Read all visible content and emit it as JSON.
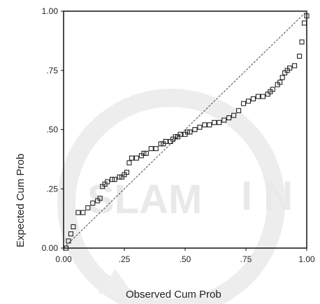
{
  "chart_data": {
    "type": "scatter",
    "title": "",
    "xlabel": "Observed Cum Prob",
    "ylabel": "Expected Cum Prob",
    "xlim": [
      0,
      1
    ],
    "ylim": [
      0,
      1
    ],
    "x_ticks": [
      "0.00",
      ".25",
      ".50",
      ".75",
      "1.00"
    ],
    "y_ticks": [
      "0.00",
      ".25",
      ".50",
      ".75",
      "1.00"
    ],
    "reference_line": {
      "style": "dashed",
      "from": [
        0,
        0
      ],
      "to": [
        1,
        1
      ]
    },
    "marker": "open-square",
    "grid": false,
    "points": [
      [
        0.01,
        0.0
      ],
      [
        0.02,
        0.03
      ],
      [
        0.03,
        0.06
      ],
      [
        0.04,
        0.09
      ],
      [
        0.06,
        0.15
      ],
      [
        0.08,
        0.15
      ],
      [
        0.1,
        0.17
      ],
      [
        0.12,
        0.19
      ],
      [
        0.14,
        0.2
      ],
      [
        0.15,
        0.21
      ],
      [
        0.16,
        0.26
      ],
      [
        0.17,
        0.27
      ],
      [
        0.18,
        0.28
      ],
      [
        0.2,
        0.29
      ],
      [
        0.21,
        0.29
      ],
      [
        0.23,
        0.3
      ],
      [
        0.24,
        0.3
      ],
      [
        0.25,
        0.31
      ],
      [
        0.26,
        0.32
      ],
      [
        0.27,
        0.36
      ],
      [
        0.28,
        0.38
      ],
      [
        0.3,
        0.38
      ],
      [
        0.32,
        0.39
      ],
      [
        0.33,
        0.4
      ],
      [
        0.34,
        0.4
      ],
      [
        0.36,
        0.42
      ],
      [
        0.38,
        0.42
      ],
      [
        0.4,
        0.44
      ],
      [
        0.41,
        0.44
      ],
      [
        0.42,
        0.45
      ],
      [
        0.44,
        0.45
      ],
      [
        0.45,
        0.46
      ],
      [
        0.46,
        0.47
      ],
      [
        0.47,
        0.47
      ],
      [
        0.48,
        0.48
      ],
      [
        0.5,
        0.48
      ],
      [
        0.51,
        0.49
      ],
      [
        0.52,
        0.49
      ],
      [
        0.54,
        0.5
      ],
      [
        0.56,
        0.51
      ],
      [
        0.58,
        0.52
      ],
      [
        0.6,
        0.52
      ],
      [
        0.62,
        0.53
      ],
      [
        0.64,
        0.53
      ],
      [
        0.66,
        0.54
      ],
      [
        0.68,
        0.55
      ],
      [
        0.7,
        0.56
      ],
      [
        0.72,
        0.58
      ],
      [
        0.74,
        0.61
      ],
      [
        0.76,
        0.62
      ],
      [
        0.78,
        0.63
      ],
      [
        0.8,
        0.64
      ],
      [
        0.82,
        0.64
      ],
      [
        0.84,
        0.65
      ],
      [
        0.85,
        0.66
      ],
      [
        0.86,
        0.67
      ],
      [
        0.88,
        0.69
      ],
      [
        0.89,
        0.7
      ],
      [
        0.9,
        0.72
      ],
      [
        0.91,
        0.74
      ],
      [
        0.92,
        0.75
      ],
      [
        0.93,
        0.76
      ],
      [
        0.95,
        0.77
      ],
      [
        0.97,
        0.81
      ],
      [
        0.98,
        0.87
      ],
      [
        0.99,
        0.95
      ],
      [
        1.0,
        0.98
      ]
    ]
  },
  "watermark": {
    "text_left": "SLAM",
    "text_right": "I N"
  },
  "colors": {
    "axis": "#111111",
    "marker": "#222222",
    "reference": "#444444",
    "watermark": "#e6e6e6"
  }
}
